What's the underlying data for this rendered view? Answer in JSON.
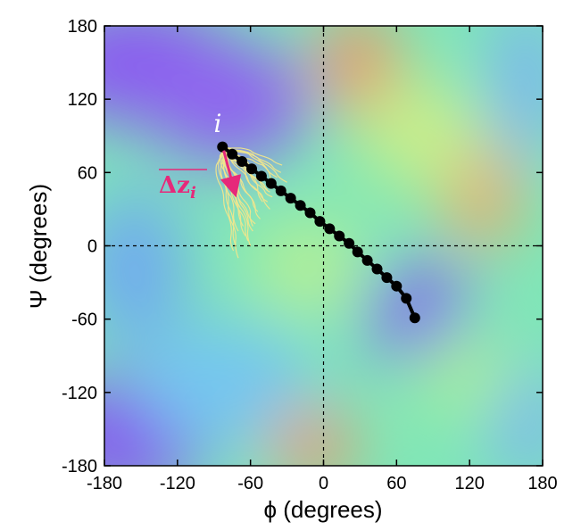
{
  "chart_data": {
    "type": "scatter",
    "title": "",
    "xlabel": "ϕ (degrees)",
    "ylabel": "Ψ (degrees)",
    "xlim": [
      -180,
      180
    ],
    "ylim": [
      -180,
      180
    ],
    "xticks": [
      -180,
      -120,
      -60,
      0,
      60,
      120,
      180
    ],
    "yticks": [
      -180,
      -120,
      -60,
      0,
      60,
      120,
      180
    ],
    "xtick_labels": [
      "-180",
      "-120",
      "-60",
      "0",
      "60",
      "120",
      "180"
    ],
    "ytick_labels": [
      "-180",
      "-120",
      "-60",
      "0",
      "60",
      "120",
      "180"
    ],
    "zero_lines": "dashed at x=0 and y=0",
    "background": "free-energy landscape heatmap, rainbow colormap (purple = low, red/orange = high)",
    "colors": {
      "path": "#000000",
      "trajectories": "#f0e68c",
      "arrow": "#e6297a",
      "label_i": "#ffffff"
    },
    "annotations": {
      "start_label": "i",
      "drift_label": "Δz_i",
      "drift_label_base": "Δz",
      "drift_label_sub": "i"
    },
    "path_points": [
      {
        "x": -83,
        "y": 81
      },
      {
        "x": -75,
        "y": 75
      },
      {
        "x": -67,
        "y": 69
      },
      {
        "x": -59,
        "y": 63
      },
      {
        "x": -51,
        "y": 57
      },
      {
        "x": -43,
        "y": 51
      },
      {
        "x": -35,
        "y": 45
      },
      {
        "x": -27,
        "y": 39
      },
      {
        "x": -19,
        "y": 33
      },
      {
        "x": -11,
        "y": 27
      },
      {
        "x": -3,
        "y": 20
      },
      {
        "x": 5,
        "y": 14
      },
      {
        "x": 13,
        "y": 8
      },
      {
        "x": 21,
        "y": 2
      },
      {
        "x": 28,
        "y": -5
      },
      {
        "x": 36,
        "y": -12
      },
      {
        "x": 44,
        "y": -19
      },
      {
        "x": 52,
        "y": -26
      },
      {
        "x": 60,
        "y": -33
      },
      {
        "x": 68,
        "y": -43
      },
      {
        "x": 75,
        "y": -59
      }
    ],
    "drift_arrow": {
      "from": {
        "x": -82,
        "y": 78
      },
      "to": {
        "x": -74,
        "y": 48
      }
    },
    "trajectories": [
      [
        [
          -83,
          81
        ],
        [
          -75,
          76
        ],
        [
          -66,
          72
        ],
        [
          -58,
          70
        ],
        [
          -50,
          66
        ],
        [
          -44,
          58
        ],
        [
          -40,
          52
        ]
      ],
      [
        [
          -83,
          81
        ],
        [
          -76,
          79
        ],
        [
          -68,
          78
        ],
        [
          -58,
          75
        ],
        [
          -50,
          70
        ],
        [
          -42,
          65
        ],
        [
          -35,
          60
        ]
      ],
      [
        [
          -83,
          81
        ],
        [
          -77,
          72
        ],
        [
          -70,
          66
        ],
        [
          -64,
          60
        ],
        [
          -60,
          50
        ],
        [
          -52,
          42
        ],
        [
          -46,
          36
        ]
      ],
      [
        [
          -83,
          81
        ],
        [
          -79,
          70
        ],
        [
          -74,
          60
        ],
        [
          -72,
          48
        ],
        [
          -68,
          36
        ],
        [
          -62,
          26
        ],
        [
          -56,
          18
        ]
      ],
      [
        [
          -83,
          81
        ],
        [
          -82,
          70
        ],
        [
          -80,
          58
        ],
        [
          -76,
          48
        ],
        [
          -72,
          34
        ],
        [
          -68,
          20
        ],
        [
          -64,
          8
        ]
      ],
      [
        [
          -83,
          81
        ],
        [
          -86,
          70
        ],
        [
          -84,
          56
        ],
        [
          -80,
          44
        ],
        [
          -77,
          30
        ],
        [
          -74,
          14
        ],
        [
          -72,
          0
        ]
      ],
      [
        [
          -83,
          81
        ],
        [
          -78,
          76
        ],
        [
          -70,
          74
        ],
        [
          -62,
          68
        ],
        [
          -56,
          60
        ],
        [
          -48,
          56
        ],
        [
          -40,
          50
        ]
      ],
      [
        [
          -83,
          81
        ],
        [
          -80,
          74
        ],
        [
          -72,
          70
        ],
        [
          -64,
          64
        ],
        [
          -58,
          56
        ],
        [
          -54,
          46
        ],
        [
          -50,
          36
        ]
      ],
      [
        [
          -83,
          81
        ],
        [
          -84,
          72
        ],
        [
          -80,
          64
        ],
        [
          -76,
          54
        ],
        [
          -74,
          42
        ],
        [
          -70,
          30
        ],
        [
          -66,
          16
        ]
      ],
      [
        [
          -83,
          81
        ],
        [
          -78,
          68
        ],
        [
          -72,
          58
        ],
        [
          -66,
          50
        ],
        [
          -60,
          40
        ],
        [
          -56,
          30
        ],
        [
          -52,
          22
        ]
      ],
      [
        [
          -83,
          81
        ],
        [
          -74,
          78
        ],
        [
          -64,
          76
        ],
        [
          -54,
          72
        ],
        [
          -46,
          66
        ],
        [
          -38,
          58
        ],
        [
          -30,
          52
        ]
      ],
      [
        [
          -83,
          81
        ],
        [
          -82,
          66
        ],
        [
          -78,
          52
        ],
        [
          -72,
          40
        ],
        [
          -66,
          28
        ],
        [
          -62,
          14
        ],
        [
          -60,
          0
        ]
      ],
      [
        [
          -83,
          81
        ],
        [
          -88,
          66
        ],
        [
          -86,
          52
        ],
        [
          -82,
          38
        ],
        [
          -78,
          24
        ],
        [
          -76,
          8
        ],
        [
          -74,
          -4
        ]
      ],
      [
        [
          -83,
          81
        ],
        [
          -76,
          70
        ],
        [
          -68,
          62
        ],
        [
          -62,
          54
        ],
        [
          -56,
          46
        ],
        [
          -50,
          40
        ],
        [
          -44,
          30
        ]
      ],
      [
        [
          -83,
          81
        ],
        [
          -80,
          78
        ],
        [
          -72,
          78
        ],
        [
          -62,
          76
        ],
        [
          -54,
          70
        ],
        [
          -46,
          62
        ],
        [
          -38,
          56
        ]
      ],
      [
        [
          -83,
          81
        ],
        [
          -81,
          68
        ],
        [
          -76,
          56
        ],
        [
          -70,
          46
        ],
        [
          -68,
          34
        ],
        [
          -62,
          22
        ],
        [
          -58,
          12
        ]
      ],
      [
        [
          -83,
          81
        ],
        [
          -79,
          72
        ],
        [
          -76,
          62
        ],
        [
          -68,
          54
        ],
        [
          -64,
          44
        ],
        [
          -58,
          36
        ],
        [
          -54,
          28
        ]
      ],
      [
        [
          -83,
          81
        ],
        [
          -85,
          74
        ],
        [
          -82,
          62
        ],
        [
          -80,
          50
        ],
        [
          -76,
          40
        ],
        [
          -74,
          26
        ],
        [
          -70,
          12
        ]
      ],
      [
        [
          -83,
          81
        ],
        [
          -74,
          74
        ],
        [
          -66,
          68
        ],
        [
          -60,
          58
        ],
        [
          -54,
          50
        ],
        [
          -48,
          44
        ],
        [
          -42,
          40
        ]
      ],
      [
        [
          -83,
          81
        ],
        [
          -80,
          70
        ],
        [
          -76,
          58
        ],
        [
          -72,
          46
        ],
        [
          -70,
          30
        ],
        [
          -64,
          18
        ],
        [
          -62,
          4
        ]
      ],
      [
        [
          -83,
          81
        ],
        [
          -78,
          80
        ],
        [
          -68,
          80
        ],
        [
          -60,
          78
        ],
        [
          -52,
          74
        ],
        [
          -42,
          70
        ],
        [
          -34,
          66
        ]
      ],
      [
        [
          -83,
          81
        ],
        [
          -82,
          72
        ],
        [
          -78,
          60
        ],
        [
          -70,
          48
        ],
        [
          -66,
          38
        ],
        [
          -60,
          28
        ],
        [
          -58,
          16
        ]
      ],
      [
        [
          -83,
          81
        ],
        [
          -84,
          66
        ],
        [
          -82,
          52
        ],
        [
          -78,
          36
        ],
        [
          -76,
          20
        ],
        [
          -72,
          6
        ],
        [
          -70,
          -10
        ]
      ],
      [
        [
          -83,
          81
        ],
        [
          -77,
          74
        ],
        [
          -70,
          68
        ],
        [
          -62,
          62
        ],
        [
          -54,
          54
        ],
        [
          -48,
          48
        ],
        [
          -44,
          44
        ]
      ],
      [
        [
          -83,
          81
        ],
        [
          -81,
          76
        ],
        [
          -74,
          70
        ],
        [
          -66,
          66
        ],
        [
          -60,
          58
        ],
        [
          -52,
          52
        ],
        [
          -46,
          46
        ]
      ]
    ]
  }
}
